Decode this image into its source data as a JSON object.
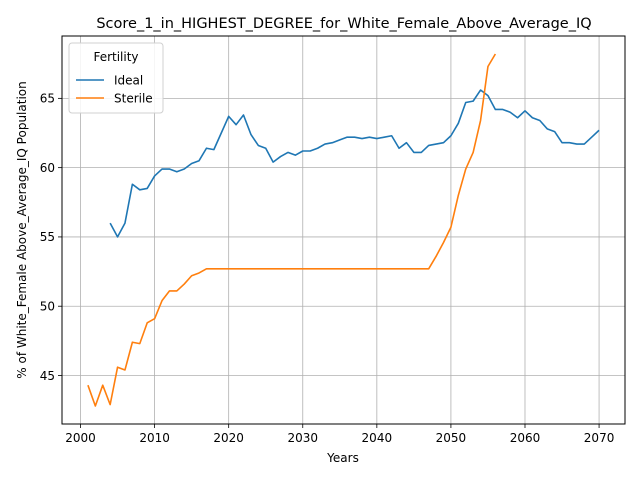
{
  "chart_data": {
    "type": "line",
    "title": "Score_1_in_HIGHEST_DEGREE_for_White_Female_Above_Average_IQ",
    "xlabel": "Years",
    "ylabel": "% of White_Female Above_Average_IQ Population",
    "xlim": [
      1997.5,
      2073.5
    ],
    "ylim": [
      41.5,
      69.5
    ],
    "xticks": [
      2000,
      2010,
      2020,
      2030,
      2040,
      2050,
      2060,
      2070
    ],
    "yticks": [
      45,
      50,
      55,
      60,
      65
    ],
    "grid": true,
    "legend": {
      "title": "Fertility",
      "position": "upper-left"
    },
    "series": [
      {
        "name": "Ideal",
        "color": "#1f77b4",
        "x": [
          2004,
          2005,
          2006,
          2007,
          2008,
          2009,
          2010,
          2011,
          2012,
          2013,
          2014,
          2015,
          2016,
          2017,
          2018,
          2019,
          2020,
          2021,
          2022,
          2023,
          2024,
          2025,
          2026,
          2027,
          2028,
          2029,
          2030,
          2031,
          2032,
          2033,
          2034,
          2035,
          2036,
          2037,
          2038,
          2039,
          2040,
          2041,
          2042,
          2043,
          2044,
          2045,
          2046,
          2047,
          2048,
          2049,
          2050,
          2051,
          2052,
          2053,
          2054,
          2055,
          2056,
          2057,
          2058,
          2059,
          2060,
          2061,
          2062,
          2063,
          2064,
          2065,
          2066,
          2067,
          2068,
          2069,
          2070
        ],
        "y": [
          56.0,
          55.0,
          56.0,
          58.8,
          58.4,
          58.5,
          59.4,
          59.9,
          59.9,
          59.7,
          59.9,
          60.3,
          60.5,
          61.4,
          61.3,
          62.5,
          63.7,
          63.1,
          63.8,
          62.4,
          61.6,
          61.4,
          60.4,
          60.8,
          61.1,
          60.9,
          61.2,
          61.2,
          61.4,
          61.7,
          61.8,
          62.0,
          62.2,
          62.2,
          62.1,
          62.2,
          62.1,
          62.2,
          62.3,
          61.4,
          61.8,
          61.1,
          61.1,
          61.6,
          61.7,
          61.8,
          62.3,
          63.2,
          64.7,
          64.8,
          65.6,
          65.2,
          64.2,
          64.2,
          64.0,
          63.6,
          64.1,
          63.6,
          63.4,
          62.8,
          62.6,
          61.8,
          61.8,
          61.7,
          61.7,
          62.2,
          62.7
        ]
      },
      {
        "name": "Sterile",
        "color": "#ff7f0e",
        "x": [
          2001,
          2002,
          2003,
          2004,
          2005,
          2006,
          2007,
          2008,
          2009,
          2010,
          2011,
          2012,
          2013,
          2014,
          2015,
          2016,
          2017,
          2018,
          2019,
          2020,
          2021,
          2022,
          2023,
          2024,
          2025,
          2026,
          2027,
          2028,
          2029,
          2030,
          2031,
          2032,
          2033,
          2034,
          2035,
          2036,
          2037,
          2038,
          2039,
          2040,
          2041,
          2042,
          2043,
          2044,
          2045,
          2046,
          2047,
          2048,
          2049,
          2050,
          2051,
          2052,
          2053,
          2054,
          2055,
          2056
        ],
        "y": [
          44.3,
          42.8,
          44.3,
          42.9,
          45.6,
          45.4,
          47.4,
          47.3,
          48.8,
          49.1,
          50.4,
          51.1,
          51.1,
          51.6,
          52.2,
          52.4,
          52.7,
          52.7,
          52.7,
          52.7,
          52.7,
          52.7,
          52.7,
          52.7,
          52.7,
          52.7,
          52.7,
          52.7,
          52.7,
          52.7,
          52.7,
          52.7,
          52.7,
          52.7,
          52.7,
          52.7,
          52.7,
          52.7,
          52.7,
          52.7,
          52.7,
          52.7,
          52.7,
          52.7,
          52.7,
          52.7,
          52.7,
          53.6,
          54.6,
          55.7,
          58.0,
          59.9,
          61.1,
          63.4,
          67.3,
          68.2
        ]
      }
    ]
  }
}
